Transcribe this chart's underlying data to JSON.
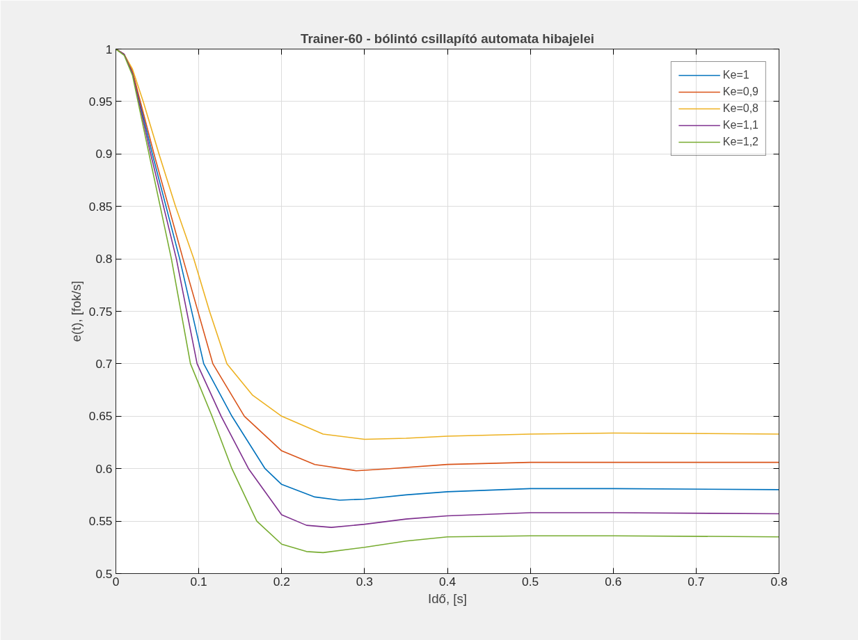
{
  "chart_data": {
    "type": "line",
    "title": "Trainer-60 - bólintó csillapító automata hibajelei",
    "xlabel": "Idő, [s]",
    "ylabel": "e(t), [fok/s]",
    "xlim": [
      0,
      0.8
    ],
    "ylim": [
      0.5,
      1
    ],
    "xticks": [
      0,
      0.1,
      0.2,
      0.3,
      0.4,
      0.5,
      0.6,
      0.7,
      0.8
    ],
    "yticks": [
      0.5,
      0.55,
      0.6,
      0.65,
      0.7,
      0.75,
      0.8,
      0.85,
      0.9,
      0.95,
      1
    ],
    "grid": true,
    "legend": "top right",
    "line_style": "solid",
    "marker": "none",
    "series": [
      {
        "name": "Ke=1",
        "color": "#0072bd",
        "x": [
          0,
          0.01,
          0.02,
          0.044,
          0.077,
          0.106,
          0.14,
          0.18,
          0.2,
          0.24,
          0.27,
          0.3,
          0.35,
          0.4,
          0.5,
          0.6,
          0.8
        ],
        "values": [
          1,
          0.995,
          0.978,
          0.9,
          0.8,
          0.7,
          0.65,
          0.6,
          0.585,
          0.573,
          0.57,
          0.571,
          0.575,
          0.578,
          0.581,
          0.581,
          0.58
        ]
      },
      {
        "name": "Ke=0,9",
        "color": "#d95319",
        "x": [
          0,
          0.01,
          0.02,
          0.046,
          0.081,
          0.117,
          0.155,
          0.2,
          0.24,
          0.29,
          0.33,
          0.4,
          0.5,
          0.6,
          0.8
        ],
        "values": [
          1,
          0.995,
          0.979,
          0.9,
          0.8,
          0.7,
          0.65,
          0.617,
          0.604,
          0.598,
          0.6,
          0.604,
          0.606,
          0.606,
          0.606
        ]
      },
      {
        "name": "Ke=0,8",
        "color": "#edb120",
        "x": [
          0,
          0.01,
          0.02,
          0.033,
          0.052,
          0.072,
          0.094,
          0.113,
          0.134,
          0.165,
          0.2,
          0.25,
          0.3,
          0.35,
          0.4,
          0.5,
          0.6,
          0.8
        ],
        "values": [
          1,
          0.995,
          0.981,
          0.95,
          0.9,
          0.85,
          0.8,
          0.75,
          0.7,
          0.67,
          0.65,
          0.633,
          0.628,
          0.629,
          0.631,
          0.633,
          0.634,
          0.633
        ]
      },
      {
        "name": "Ke=1,1",
        "color": "#7e2f8e",
        "x": [
          0,
          0.01,
          0.02,
          0.042,
          0.073,
          0.098,
          0.127,
          0.16,
          0.2,
          0.23,
          0.26,
          0.3,
          0.35,
          0.4,
          0.5,
          0.6,
          0.8
        ],
        "values": [
          1,
          0.995,
          0.977,
          0.9,
          0.8,
          0.7,
          0.65,
          0.6,
          0.556,
          0.546,
          0.544,
          0.547,
          0.552,
          0.555,
          0.558,
          0.558,
          0.557
        ]
      },
      {
        "name": "Ke=1,2",
        "color": "#77ac30",
        "x": [
          0,
          0.01,
          0.02,
          0.04,
          0.067,
          0.09,
          0.116,
          0.14,
          0.17,
          0.2,
          0.23,
          0.25,
          0.3,
          0.35,
          0.4,
          0.5,
          0.6,
          0.8
        ],
        "values": [
          1,
          0.994,
          0.975,
          0.9,
          0.8,
          0.7,
          0.65,
          0.6,
          0.55,
          0.528,
          0.521,
          0.52,
          0.525,
          0.531,
          0.535,
          0.536,
          0.536,
          0.535
        ]
      }
    ]
  }
}
